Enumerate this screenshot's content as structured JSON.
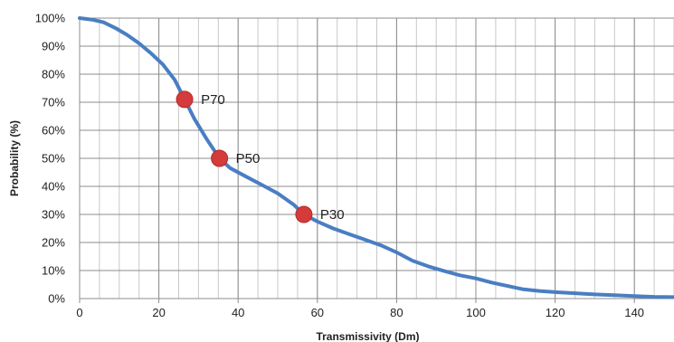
{
  "chart_data": {
    "type": "line",
    "title": "",
    "xlabel": "Transmissivity (Dm)",
    "ylabel": "Probability (%)",
    "xlim": [
      0,
      150
    ],
    "ylim": [
      0,
      100
    ],
    "x_ticks": [
      0,
      20,
      40,
      60,
      80,
      100,
      120,
      140
    ],
    "x_tick_labels": [
      "0",
      "20",
      "40",
      "60",
      "80",
      "100",
      "120",
      "140"
    ],
    "y_ticks": [
      0,
      10,
      20,
      30,
      40,
      50,
      60,
      70,
      80,
      90,
      100
    ],
    "y_tick_labels": [
      "0%",
      "10%",
      "20%",
      "30%",
      "40%",
      "50%",
      "60%",
      "70%",
      "80%",
      "90%",
      "100%"
    ],
    "grid": true,
    "minor_x_grid_step": 5,
    "line_color": "#4a7ec2",
    "marker_color": "#d43b3b",
    "series": [
      {
        "x": [
          0,
          3,
          6,
          9,
          12,
          15,
          18,
          21,
          24,
          26.5,
          29,
          32,
          35.3,
          38,
          42,
          46,
          50,
          54,
          56.6,
          60,
          64,
          68,
          72,
          76,
          80,
          84,
          88,
          92,
          96,
          100,
          104,
          108,
          112,
          116,
          120,
          125,
          130,
          135,
          140,
          145,
          150
        ],
        "y": [
          100,
          99.5,
          98.5,
          96.5,
          94,
          91,
          87.5,
          83.5,
          78,
          71,
          64,
          57,
          50,
          46.5,
          43.5,
          40.5,
          37.5,
          33.5,
          30,
          27.5,
          25,
          23,
          21,
          19,
          16.5,
          13.5,
          11.5,
          9.8,
          8.3,
          7.2,
          5.7,
          4.5,
          3.3,
          2.7,
          2.3,
          1.9,
          1.5,
          1.2,
          0.9,
          0.6,
          0.5
        ]
      }
    ],
    "points": [
      {
        "label": "P70",
        "x": 26.5,
        "y": 71
      },
      {
        "label": "P50",
        "x": 35.3,
        "y": 50
      },
      {
        "label": "P30",
        "x": 56.6,
        "y": 30
      }
    ]
  }
}
